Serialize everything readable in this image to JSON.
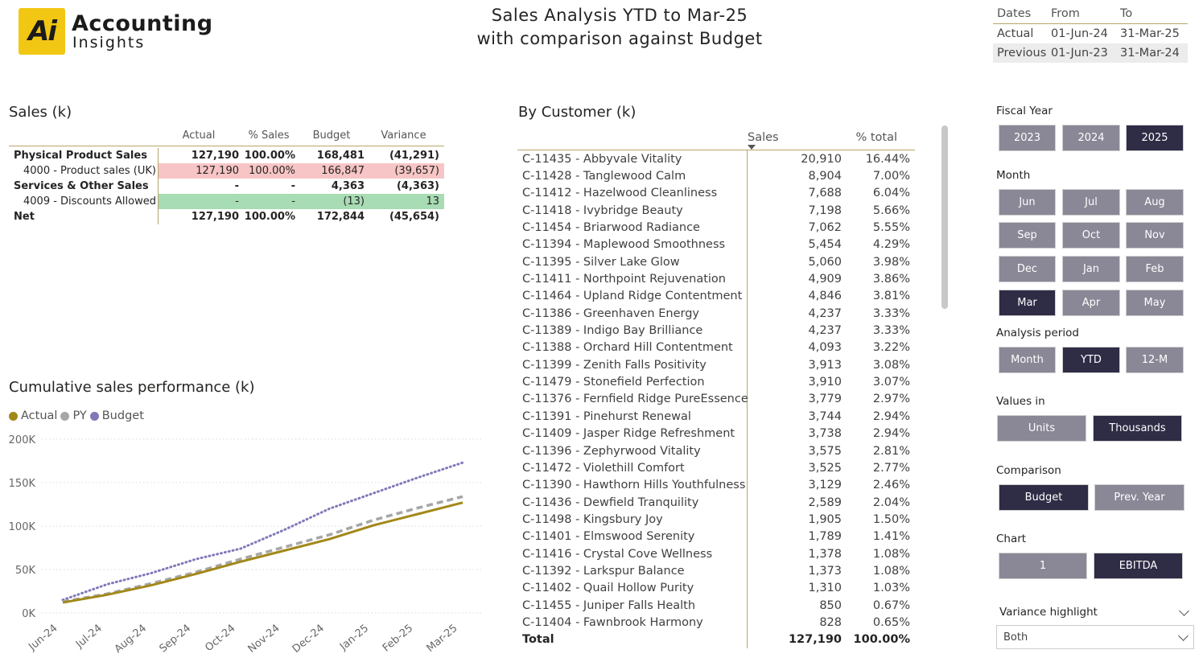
{
  "logo": {
    "mark": "Ai",
    "line1": "Accounting",
    "line2": "Insights"
  },
  "title": {
    "line1": "Sales Analysis YTD to Mar-25",
    "line2": "with comparison against Budget"
  },
  "dates": {
    "headers": [
      "Dates",
      "From",
      "To"
    ],
    "rows": [
      [
        "Actual",
        "01-Jun-24",
        "31-Mar-25"
      ],
      [
        "Previous",
        "01-Jun-23",
        "31-Mar-24"
      ]
    ]
  },
  "sales": {
    "title": "Sales (k)",
    "headers": [
      "Actual",
      "% Sales",
      "Budget",
      "Variance"
    ],
    "rows": [
      {
        "label": "Physical Product Sales",
        "vals": [
          "127,190",
          "100.00%",
          "168,481",
          "(41,291)"
        ]
      },
      {
        "label": "4000 - Product sales (UK)",
        "vals": [
          "127,190",
          "100.00%",
          "166,847",
          "(39,657)"
        ]
      },
      {
        "label": "Services & Other Sales",
        "vals": [
          "-",
          "-",
          "4,363",
          "(4,363)"
        ]
      },
      {
        "label": "4009 - Discounts Allowed",
        "vals": [
          "-",
          "-",
          "(13)",
          "13"
        ]
      },
      {
        "label": "Net",
        "vals": [
          "127,190",
          "100.00%",
          "172,844",
          "(45,654)"
        ]
      }
    ],
    "colors": {
      "negative_bg": "#f7c5c5",
      "positive_bg": "#a8dcb4"
    }
  },
  "customers": {
    "title": "By Customer (k)",
    "headers": {
      "sales": "Sales",
      "pct": "% total"
    },
    "rows": [
      [
        "C-11435 - Abbyvale Vitality",
        "20,910",
        "16.44%"
      ],
      [
        "C-11428 - Tanglewood Calm",
        "8,904",
        "7.00%"
      ],
      [
        "C-11412 - Hazelwood Cleanliness",
        "7,688",
        "6.04%"
      ],
      [
        "C-11418 - Ivybridge Beauty",
        "7,198",
        "5.66%"
      ],
      [
        "C-11454 - Briarwood Radiance",
        "7,062",
        "5.55%"
      ],
      [
        "C-11394 - Maplewood Smoothness",
        "5,454",
        "4.29%"
      ],
      [
        "C-11395 - Silver Lake Glow",
        "5,060",
        "3.98%"
      ],
      [
        "C-11411 - Northpoint Rejuvenation",
        "4,909",
        "3.86%"
      ],
      [
        "C-11464 - Upland Ridge Contentment",
        "4,846",
        "3.81%"
      ],
      [
        "C-11386 - Greenhaven Energy",
        "4,237",
        "3.33%"
      ],
      [
        "C-11389 - Indigo Bay Brilliance",
        "4,237",
        "3.33%"
      ],
      [
        "C-11388 - Orchard Hill Contentment",
        "4,093",
        "3.22%"
      ],
      [
        "C-11399 - Zenith Falls Positivity",
        "3,913",
        "3.08%"
      ],
      [
        "C-11479 - Stonefield Perfection",
        "3,910",
        "3.07%"
      ],
      [
        "C-11376 - Fernfield Ridge PureEssence",
        "3,779",
        "2.97%"
      ],
      [
        "C-11391 - Pinehurst Renewal",
        "3,744",
        "2.94%"
      ],
      [
        "C-11409 - Jasper Ridge Refreshment",
        "3,738",
        "2.94%"
      ],
      [
        "C-11396 - Zephyrwood Vitality",
        "3,575",
        "2.81%"
      ],
      [
        "C-11472 - Violethill Comfort",
        "3,525",
        "2.77%"
      ],
      [
        "C-11390 - Hawthorn Hills Youthfulness",
        "3,129",
        "2.46%"
      ],
      [
        "C-11436 - Dewfield Tranquility",
        "2,589",
        "2.04%"
      ],
      [
        "C-11498 - Kingsbury Joy",
        "1,905",
        "1.50%"
      ],
      [
        "C-11401 - Elmswood Serenity",
        "1,789",
        "1.41%"
      ],
      [
        "C-11416 - Crystal Cove Wellness",
        "1,378",
        "1.08%"
      ],
      [
        "C-11392 - Larkspur Balance",
        "1,373",
        "1.08%"
      ],
      [
        "C-11402 - Quail Hollow Purity",
        "1,310",
        "1.03%"
      ],
      [
        "C-11455 - Juniper Falls Health",
        "850",
        "0.67%"
      ],
      [
        "C-11404 - Fawnbrook Harmony",
        "828",
        "0.65%"
      ]
    ],
    "total": [
      "Total",
      "127,190",
      "100.00%"
    ]
  },
  "slicers": {
    "fiscal_year": {
      "label": "Fiscal Year",
      "options": [
        "2023",
        "2024",
        "2025"
      ],
      "selected": "2025"
    },
    "month": {
      "label": "Month",
      "options": [
        "Jun",
        "Jul",
        "Aug",
        "Sep",
        "Oct",
        "Nov",
        "Dec",
        "Jan",
        "Feb",
        "Mar",
        "Apr",
        "May"
      ],
      "selected": "Mar"
    },
    "analysis_period": {
      "label": "Analysis period",
      "options": [
        "Month",
        "YTD",
        "12-M"
      ],
      "selected": "YTD"
    },
    "values_in": {
      "label": "Values in",
      "options": [
        "Units",
        "Thousands"
      ],
      "selected": "Thousands"
    },
    "comparison": {
      "label": "Comparison",
      "options": [
        "Budget",
        "Prev. Year"
      ],
      "selected": "Budget"
    },
    "chart": {
      "label": "Chart",
      "options": [
        "1",
        "EBITDA"
      ],
      "selected": "EBITDA"
    },
    "variance_highlight": {
      "label": "Variance highlight",
      "value": "Both"
    }
  },
  "chart_title": "Cumulative sales performance (k)",
  "chart_data": {
    "type": "line",
    "categories": [
      "Jun-24",
      "Jul-24",
      "Aug-24",
      "Sep-24",
      "Oct-24",
      "Nov-24",
      "Dec-24",
      "Jan-25",
      "Feb-25",
      "Mar-25"
    ],
    "series": [
      {
        "name": "Actual",
        "color": "#a28819",
        "style": "solid",
        "values": [
          12,
          21,
          32,
          45,
          59,
          72,
          85,
          101,
          114,
          127
        ]
      },
      {
        "name": "PY",
        "color": "#a6a6a6",
        "style": "dashed",
        "values": [
          13,
          22,
          34,
          47,
          62,
          76,
          90,
          107,
          121,
          134
        ]
      },
      {
        "name": "Budget",
        "color": "#7f79b8",
        "style": "dotted",
        "values": [
          15,
          33,
          46,
          62,
          74,
          96,
          120,
          138,
          156,
          173
        ]
      }
    ],
    "yticks": [
      "0K",
      "50K",
      "100K",
      "150K",
      "200K"
    ],
    "ylim": [
      0,
      200
    ],
    "grid": true,
    "legend": "top-left"
  }
}
